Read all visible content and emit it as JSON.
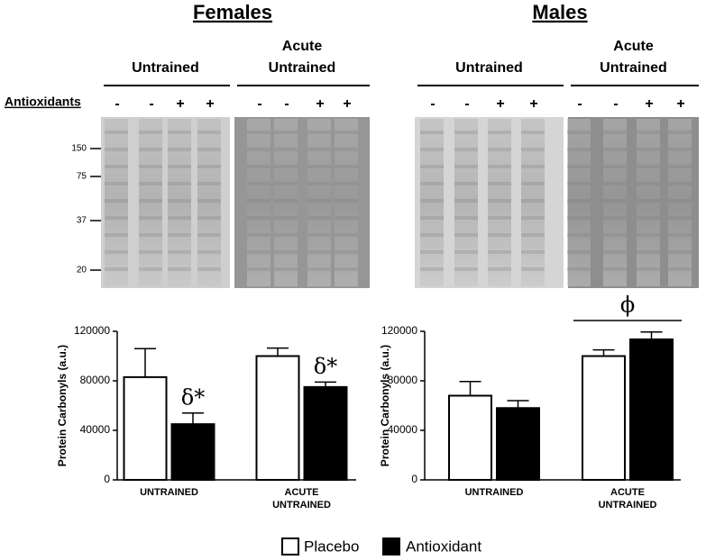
{
  "blots": {
    "antioxidants_label": "Antioxidants",
    "lanes": [
      "-",
      "-",
      "+",
      "+"
    ],
    "markers": [
      150,
      75,
      37,
      20
    ],
    "panels": [
      {
        "title": "Females",
        "groups": [
          "Untrained",
          "Acute Untrained"
        ]
      },
      {
        "title": "Males",
        "groups": [
          "Untrained",
          "Acute Untrained"
        ]
      }
    ]
  },
  "chart_data": [
    {
      "type": "bar",
      "ylabel": "Protein Carbonyls (a.u.)",
      "categories": [
        "UNTRAINED",
        "ACUTE UNTRAINED"
      ],
      "series": [
        {
          "name": "Placebo",
          "color": "#ffffff",
          "values": [
            83000,
            100000
          ],
          "errors": [
            23000,
            6500
          ]
        },
        {
          "name": "Antioxidant",
          "color": "#000000",
          "values": [
            45000,
            75000
          ],
          "errors": [
            9000,
            4000
          ]
        }
      ],
      "ylim": [
        0,
        120000
      ],
      "yticks": [
        0,
        40000,
        80000,
        120000
      ],
      "annotations": [
        "δ*",
        "δ*"
      ]
    },
    {
      "type": "bar",
      "ylabel": "Protein Carbonyls (a.u.)",
      "categories": [
        "UNTRAINED",
        "ACUTE UNTRAINED"
      ],
      "series": [
        {
          "name": "Placebo",
          "color": "#ffffff",
          "values": [
            68000,
            100000
          ],
          "errors": [
            11500,
            5000
          ]
        },
        {
          "name": "Antioxidant",
          "color": "#000000",
          "values": [
            58000,
            113500
          ],
          "errors": [
            6000,
            6000
          ]
        }
      ],
      "ylim": [
        0,
        120000
      ],
      "yticks": [
        0,
        40000,
        80000,
        120000
      ],
      "annotations": [
        "ϕ"
      ]
    }
  ]
}
